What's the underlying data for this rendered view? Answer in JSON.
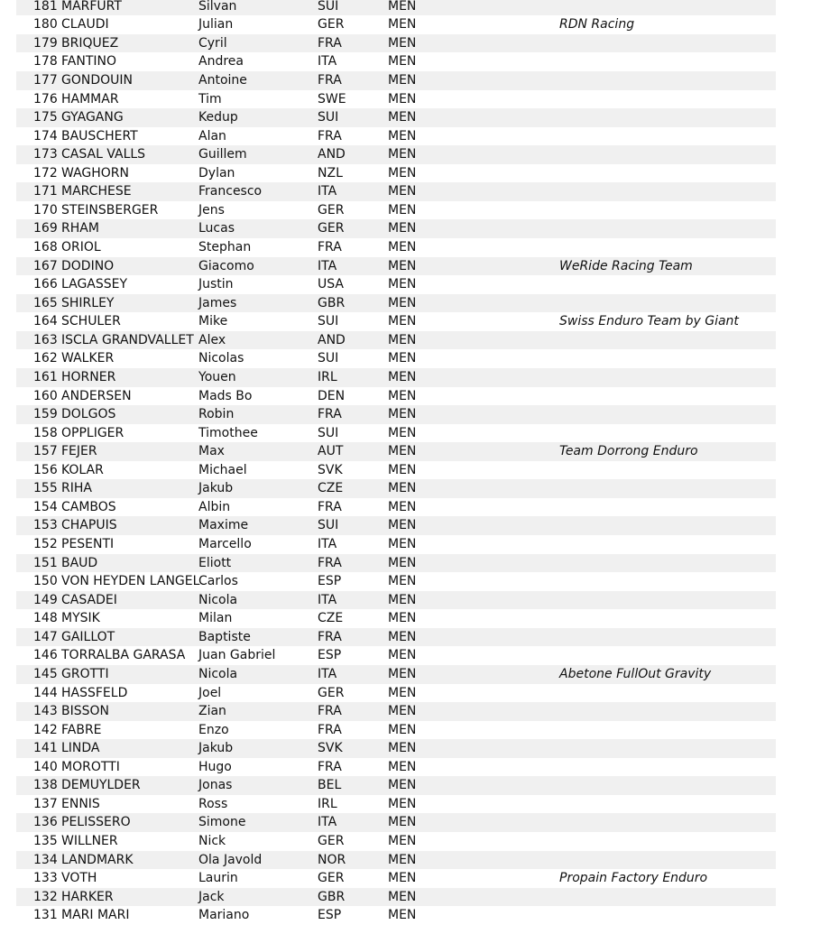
{
  "riders": [
    {
      "num": "181",
      "last": "MARFURT",
      "first": "Silvan",
      "nat": "SUI",
      "cat": "MEN",
      "team": ""
    },
    {
      "num": "180",
      "last": "CLAUDI",
      "first": "Julian",
      "nat": "GER",
      "cat": "MEN",
      "team": "RDN Racing"
    },
    {
      "num": "179",
      "last": "BRIQUEZ",
      "first": "Cyril",
      "nat": "FRA",
      "cat": "MEN",
      "team": ""
    },
    {
      "num": "178",
      "last": "FANTINO",
      "first": "Andrea",
      "nat": "ITA",
      "cat": "MEN",
      "team": ""
    },
    {
      "num": "177",
      "last": "GONDOUIN",
      "first": "Antoine",
      "nat": "FRA",
      "cat": "MEN",
      "team": ""
    },
    {
      "num": "176",
      "last": "HAMMAR",
      "first": "Tim",
      "nat": "SWE",
      "cat": "MEN",
      "team": ""
    },
    {
      "num": "175",
      "last": "GYAGANG",
      "first": "Kedup",
      "nat": "SUI",
      "cat": "MEN",
      "team": ""
    },
    {
      "num": "174",
      "last": "BAUSCHERT",
      "first": "Alan",
      "nat": "FRA",
      "cat": "MEN",
      "team": ""
    },
    {
      "num": "173",
      "last": "CASAL VALLS",
      "first": "Guillem",
      "nat": "AND",
      "cat": "MEN",
      "team": ""
    },
    {
      "num": "172",
      "last": "WAGHORN",
      "first": "Dylan",
      "nat": "NZL",
      "cat": "MEN",
      "team": ""
    },
    {
      "num": "171",
      "last": "MARCHESE",
      "first": "Francesco",
      "nat": "ITA",
      "cat": "MEN",
      "team": ""
    },
    {
      "num": "170",
      "last": "STEINSBERGER",
      "first": "Jens",
      "nat": "GER",
      "cat": "MEN",
      "team": ""
    },
    {
      "num": "169",
      "last": "RHAM",
      "first": "Lucas",
      "nat": "GER",
      "cat": "MEN",
      "team": ""
    },
    {
      "num": "168",
      "last": "ORIOL",
      "first": "Stephan",
      "nat": "FRA",
      "cat": "MEN",
      "team": ""
    },
    {
      "num": "167",
      "last": "DODINO",
      "first": "Giacomo",
      "nat": "ITA",
      "cat": "MEN",
      "team": "WeRide Racing Team"
    },
    {
      "num": "166",
      "last": "LAGASSEY",
      "first": "Justin",
      "nat": "USA",
      "cat": "MEN",
      "team": ""
    },
    {
      "num": "165",
      "last": "SHIRLEY",
      "first": "James",
      "nat": "GBR",
      "cat": "MEN",
      "team": ""
    },
    {
      "num": "164",
      "last": "SCHULER",
      "first": "Mike",
      "nat": "SUI",
      "cat": "MEN",
      "team": "Swiss Enduro Team by Giant"
    },
    {
      "num": "163",
      "last": "ISCLA GRANDVALLET",
      "first": "Alex",
      "nat": "AND",
      "cat": "MEN",
      "team": ""
    },
    {
      "num": "162",
      "last": "WALKER",
      "first": "Nicolas",
      "nat": "SUI",
      "cat": "MEN",
      "team": ""
    },
    {
      "num": "161",
      "last": "HORNER",
      "first": "Youen",
      "nat": "IRL",
      "cat": "MEN",
      "team": ""
    },
    {
      "num": "160",
      "last": "ANDERSEN",
      "first": "Mads Bo",
      "nat": "DEN",
      "cat": "MEN",
      "team": ""
    },
    {
      "num": "159",
      "last": "DOLGOS",
      "first": "Robin",
      "nat": "FRA",
      "cat": "MEN",
      "team": ""
    },
    {
      "num": "158",
      "last": "OPPLIGER",
      "first": "Timothee",
      "nat": "SUI",
      "cat": "MEN",
      "team": ""
    },
    {
      "num": "157",
      "last": "FEJER",
      "first": "Max",
      "nat": "AUT",
      "cat": "MEN",
      "team": "Team Dorrong Enduro"
    },
    {
      "num": "156",
      "last": "KOLAR",
      "first": "Michael",
      "nat": "SVK",
      "cat": "MEN",
      "team": ""
    },
    {
      "num": "155",
      "last": "RIHA",
      "first": "Jakub",
      "nat": "CZE",
      "cat": "MEN",
      "team": ""
    },
    {
      "num": "154",
      "last": "CAMBOS",
      "first": "Albin",
      "nat": "FRA",
      "cat": "MEN",
      "team": ""
    },
    {
      "num": "153",
      "last": "CHAPUIS",
      "first": "Maxime",
      "nat": "SUI",
      "cat": "MEN",
      "team": ""
    },
    {
      "num": "152",
      "last": "PESENTI",
      "first": "Marcello",
      "nat": "ITA",
      "cat": "MEN",
      "team": ""
    },
    {
      "num": "151",
      "last": "BAUD",
      "first": "Eliott",
      "nat": "FRA",
      "cat": "MEN",
      "team": ""
    },
    {
      "num": "150",
      "last": "VON HEYDEN LANGEL",
      "first": "Carlos",
      "nat": "ESP",
      "cat": "MEN",
      "team": ""
    },
    {
      "num": "149",
      "last": "CASADEI",
      "first": "Nicola",
      "nat": "ITA",
      "cat": "MEN",
      "team": ""
    },
    {
      "num": "148",
      "last": "MYSIK",
      "first": "Milan",
      "nat": "CZE",
      "cat": "MEN",
      "team": ""
    },
    {
      "num": "147",
      "last": "GAILLOT",
      "first": "Baptiste",
      "nat": "FRA",
      "cat": "MEN",
      "team": ""
    },
    {
      "num": "146",
      "last": "TORRALBA GARASA",
      "first": "Juan Gabriel",
      "nat": "ESP",
      "cat": "MEN",
      "team": ""
    },
    {
      "num": "145",
      "last": "GROTTI",
      "first": "Nicola",
      "nat": "ITA",
      "cat": "MEN",
      "team": "Abetone FullOut Gravity"
    },
    {
      "num": "144",
      "last": "HASSFELD",
      "first": "Joel",
      "nat": "GER",
      "cat": "MEN",
      "team": ""
    },
    {
      "num": "143",
      "last": "BISSON",
      "first": "Zian",
      "nat": "FRA",
      "cat": "MEN",
      "team": ""
    },
    {
      "num": "142",
      "last": "FABRE",
      "first": "Enzo",
      "nat": "FRA",
      "cat": "MEN",
      "team": ""
    },
    {
      "num": "141",
      "last": "LINDA",
      "first": "Jakub",
      "nat": "SVK",
      "cat": "MEN",
      "team": ""
    },
    {
      "num": "140",
      "last": "MOROTTI",
      "first": "Hugo",
      "nat": "FRA",
      "cat": "MEN",
      "team": ""
    },
    {
      "num": "138",
      "last": "DEMUYLDER",
      "first": "Jonas",
      "nat": "BEL",
      "cat": "MEN",
      "team": ""
    },
    {
      "num": "137",
      "last": "ENNIS",
      "first": "Ross",
      "nat": "IRL",
      "cat": "MEN",
      "team": ""
    },
    {
      "num": "136",
      "last": "PELISSERO",
      "first": "Simone",
      "nat": "ITA",
      "cat": "MEN",
      "team": ""
    },
    {
      "num": "135",
      "last": "WILLNER",
      "first": "Nick",
      "nat": "GER",
      "cat": "MEN",
      "team": ""
    },
    {
      "num": "134",
      "last": "LANDMARK",
      "first": "Ola Javold",
      "nat": "NOR",
      "cat": "MEN",
      "team": ""
    },
    {
      "num": "133",
      "last": "VOTH",
      "first": "Laurin",
      "nat": "GER",
      "cat": "MEN",
      "team": "Propain Factory Enduro"
    },
    {
      "num": "132",
      "last": "HARKER",
      "first": "Jack",
      "nat": "GBR",
      "cat": "MEN",
      "team": ""
    },
    {
      "num": "131",
      "last": "MARI MARI",
      "first": "Mariano",
      "nat": "ESP",
      "cat": "MEN",
      "team": ""
    }
  ],
  "colors": {
    "stripe": "#f0f0f0",
    "text": "#111111"
  }
}
